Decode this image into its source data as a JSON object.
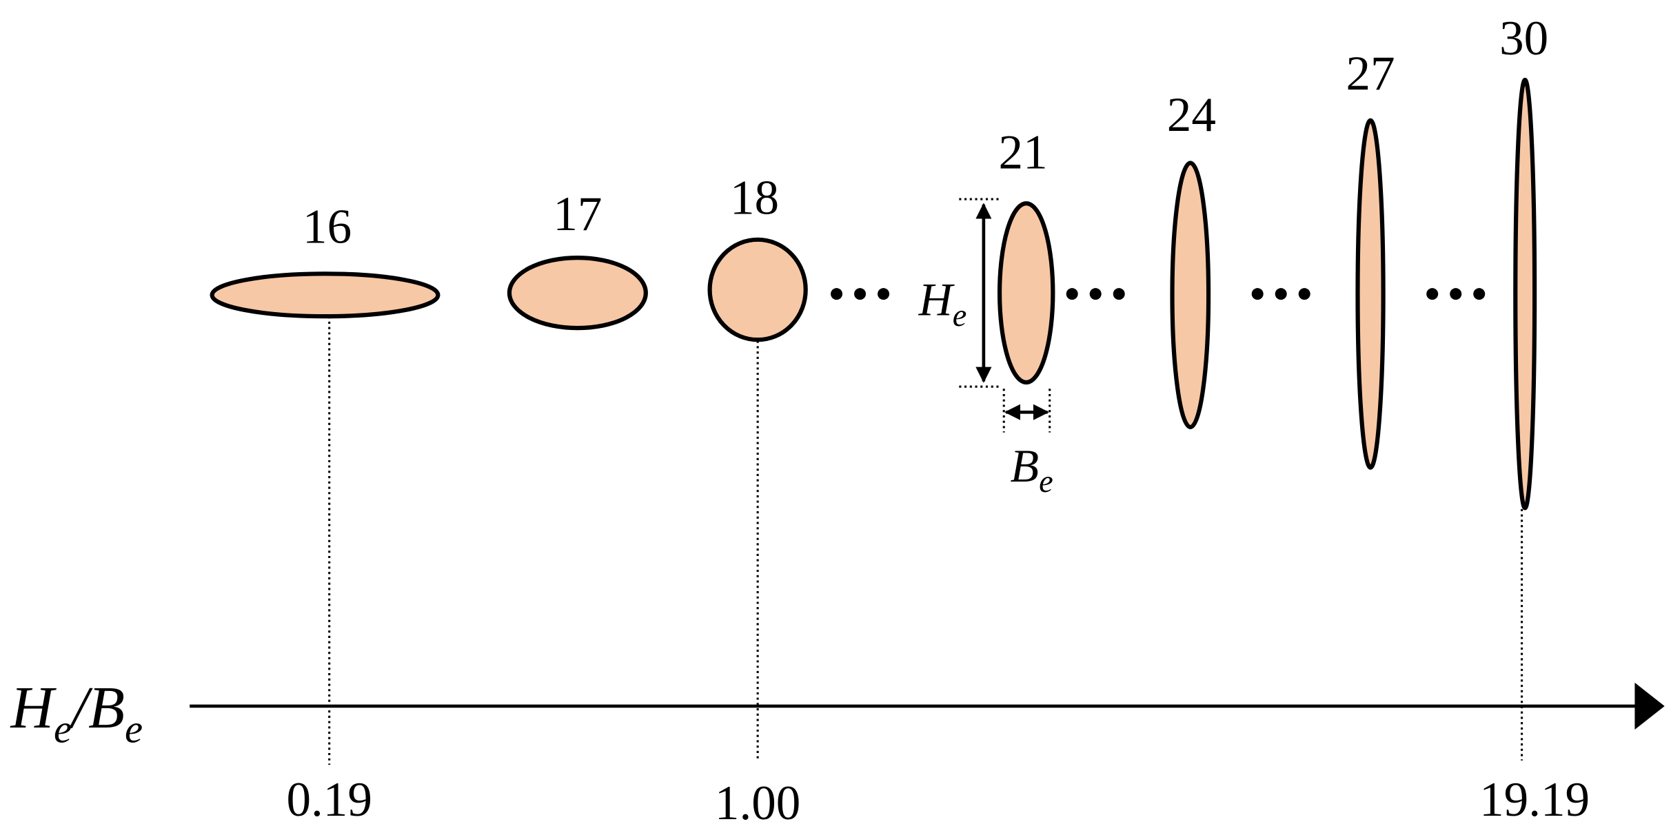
{
  "shapes": [
    {
      "label": "16"
    },
    {
      "label": "17"
    },
    {
      "label": "18"
    },
    {
      "label": "21"
    },
    {
      "label": "24"
    },
    {
      "label": "27"
    },
    {
      "label": "30"
    }
  ],
  "height_annotation": {
    "symbol": "H",
    "subscript": "e"
  },
  "width_annotation": {
    "symbol": "B",
    "subscript": "e"
  },
  "axis": {
    "label": {
      "numerator": "H",
      "numerator_subscript": "e",
      "slash": "/",
      "denominator": "B",
      "denominator_subscript": "e"
    },
    "ticks": [
      "0.19",
      "1.00",
      "19.19"
    ]
  }
}
